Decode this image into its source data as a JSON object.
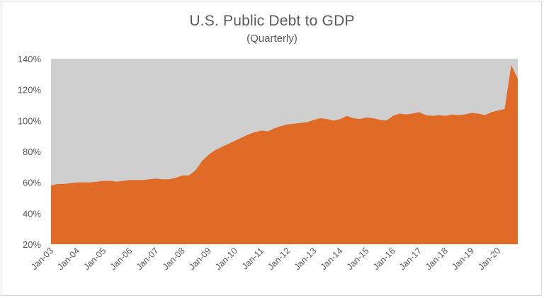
{
  "chart_data": {
    "type": "area",
    "title": "U.S. Public Debt to GDP",
    "subtitle": "(Quarterly)",
    "y_tick_labels": [
      "20%",
      "40%",
      "60%",
      "80%",
      "100%",
      "120%",
      "140%"
    ],
    "ylim": [
      20,
      140
    ],
    "x_tick_labels": [
      "Jan-03",
      "Jan-04",
      "Jan-05",
      "Jan-06",
      "Jan-07",
      "Jan-08",
      "Jan-09",
      "Jan-10",
      "Jan-11",
      "Jan-12",
      "Jan-13",
      "Jan-14",
      "Jan-15",
      "Jan-16",
      "Jan-17",
      "Jan-18",
      "Jan-19",
      "Jan-20"
    ],
    "grid": false,
    "colors": {
      "area": "#E06B27",
      "plot_background": "#D0CFD0"
    },
    "series": [
      {
        "values": [
          58,
          59,
          59,
          59.5,
          60,
          60,
          60,
          60.5,
          61,
          61,
          60.5,
          61,
          61.5,
          61.5,
          61.5,
          62,
          62.5,
          62,
          62,
          63,
          64.5,
          64.5,
          68,
          74,
          78,
          81,
          83,
          85,
          87,
          89,
          91,
          92.5,
          93.5,
          93,
          95,
          96.5,
          97.5,
          98,
          98.5,
          99,
          100.5,
          101.5,
          101,
          100,
          101,
          103,
          101.5,
          101,
          102,
          101.5,
          100.5,
          100,
          103,
          104.5,
          104,
          104.5,
          105.5,
          103.5,
          103,
          103.5,
          103,
          104,
          103.5,
          104,
          105,
          104.5,
          103.5,
          105.5,
          106.5,
          107.5,
          136,
          127
        ]
      }
    ]
  }
}
